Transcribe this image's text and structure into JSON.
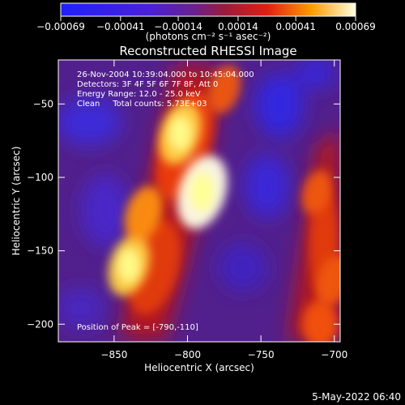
{
  "chart_data": {
    "type": "heatmap",
    "title": "Reconstructed RHESSI Image",
    "xlabel": "Heliocentric X (arcsec)",
    "ylabel": "Heliocentric Y (arcsec)",
    "xlim": [
      -888,
      -696
    ],
    "ylim": [
      -212,
      -20
    ],
    "x_ticks": [
      {
        "value": -850,
        "label": "−850"
      },
      {
        "value": -800,
        "label": "−800"
      },
      {
        "value": -750,
        "label": "−750"
      },
      {
        "value": -700,
        "label": "−700"
      }
    ],
    "y_ticks": [
      {
        "value": -50,
        "label": "−50"
      },
      {
        "value": -100,
        "label": "−100"
      },
      {
        "value": -150,
        "label": "−150"
      },
      {
        "value": -200,
        "label": "−200"
      }
    ],
    "colorbar": {
      "range": [
        -0.00069,
        0.00069
      ],
      "ticks": [
        {
          "value": -0.00069,
          "label": "−0.00069"
        },
        {
          "value": -0.00041,
          "label": "−0.00041"
        },
        {
          "value": -0.00014,
          "label": "−0.00014"
        },
        {
          "value": 0.00014,
          "label": "0.00014"
        },
        {
          "value": 0.00041,
          "label": "0.00041"
        },
        {
          "value": 0.00069,
          "label": "0.00069"
        }
      ],
      "unit_label": "(photons cm⁻² s⁻¹ asec⁻²)"
    },
    "annotations": [
      "26-Nov-2004 10:39:04.000 to 10:45:04.000",
      "Detectors: 3F 4F 5F 6F 7F 8F, Att 0",
      "Energy Range: 12.0 - 25.0 keV",
      "Clean     Total counts: 5.73E+03"
    ],
    "peak_label": "Position of Peak = [-790,-110]",
    "peak_position": [
      -790,
      -110
    ],
    "sources": [
      {
        "x": -790,
        "y": -110,
        "level": 1.0
      },
      {
        "x": -805,
        "y": -70,
        "level": 0.75
      },
      {
        "x": -840,
        "y": -160,
        "level": 0.72
      },
      {
        "x": -830,
        "y": -125,
        "level": 0.6
      },
      {
        "x": -775,
        "y": -40,
        "level": 0.45
      },
      {
        "x": -700,
        "y": -170,
        "level": 0.5
      },
      {
        "x": -712,
        "y": -110,
        "level": 0.35
      }
    ]
  },
  "colors": {
    "background": "#000000",
    "negative": "#3030ff",
    "zero": "#502080",
    "mid": "#e03010",
    "positive": "#ffffa0"
  },
  "footer": {
    "date": "5-May-2022 06:40"
  }
}
